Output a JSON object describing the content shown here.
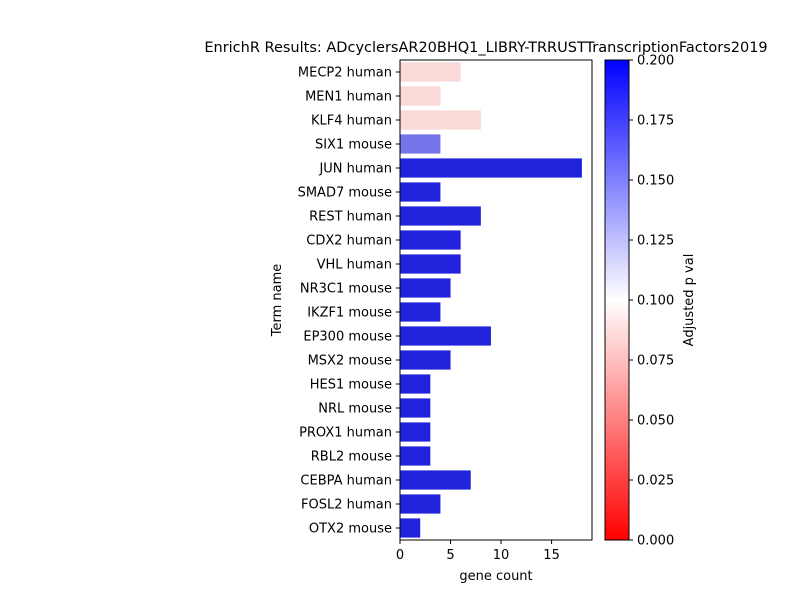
{
  "chart_data": {
    "type": "bar",
    "orientation": "horizontal",
    "title": "EnrichR Results: ADcyclersAR20BHQ1_LIBRY-TRRUSTTranscriptionFactors2019",
    "xlabel": "gene count",
    "ylabel": "Term name",
    "xlim": [
      0,
      19
    ],
    "xticks": [
      0,
      5,
      10,
      15
    ],
    "categories": [
      "MECP2 human",
      "MEN1 human",
      "KLF4 human",
      "SIX1 mouse",
      "JUN human",
      "SMAD7 mouse",
      "REST human",
      "CDX2 human",
      "VHL human",
      "NR3C1 mouse",
      "IKZF1 mouse",
      "EP300 mouse",
      "MSX2 mouse",
      "HES1 mouse",
      "NRL mouse",
      "PROX1 human",
      "RBL2 mouse",
      "CEBPA human",
      "FOSL2 human",
      "OTX2 mouse"
    ],
    "values": [
      6,
      4,
      8,
      4,
      18,
      4,
      8,
      6,
      6,
      5,
      4,
      9,
      5,
      3,
      3,
      3,
      3,
      7,
      4,
      2
    ],
    "bar_colors": [
      "#fad9d9",
      "#fad9d9",
      "#fad9d9",
      "#7575ea",
      "#2222dd",
      "#2222dd",
      "#2222dd",
      "#2222dd",
      "#2222dd",
      "#2222dd",
      "#2222dd",
      "#2222dd",
      "#2222dd",
      "#2222dd",
      "#2222dd",
      "#2222dd",
      "#2222dd",
      "#2222dd",
      "#2222dd",
      "#2222dd"
    ],
    "colorbar": {
      "label": "Adjusted p val",
      "range": [
        0,
        0.2
      ],
      "ticks": [
        "0.000",
        "0.025",
        "0.050",
        "0.075",
        "0.100",
        "0.125",
        "0.150",
        "0.175",
        "0.200"
      ],
      "colormap": [
        "#ff0000",
        "#ffffff",
        "#0000ff"
      ]
    }
  }
}
